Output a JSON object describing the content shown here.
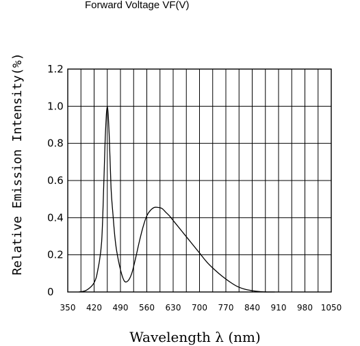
{
  "chart_data": {
    "type": "line",
    "top_text": "Forward Voltage VF(V)",
    "xlabel": "Wavelength λ (nm)",
    "ylabel": "Relative Emission Intensity(%)",
    "x_ticks": [
      "350",
      "420",
      "490",
      "560",
      "630",
      "700",
      "770",
      "840",
      "910",
      "980",
      "1050"
    ],
    "y_ticks": [
      "0",
      "0.2",
      "0.4",
      "0.6",
      "0.8",
      "1.0",
      "1.2"
    ],
    "xlim": [
      350,
      1050
    ],
    "ylim": [
      0,
      1.2
    ],
    "grid": true,
    "series": [
      {
        "color": "#000000",
        "x": [
          380,
          400,
          420,
          430,
          440,
          446,
          450,
          455,
          460,
          465,
          470,
          475,
          480,
          490,
          500,
          510,
          520,
          530,
          540,
          550,
          560,
          570,
          580,
          590,
          600,
          610,
          620,
          630,
          640,
          660,
          680,
          700,
          720,
          740,
          760,
          780,
          800,
          820,
          840,
          860,
          880,
          890,
          900
        ],
        "y": [
          0.0,
          0.01,
          0.05,
          0.12,
          0.27,
          0.6,
          0.85,
          1.0,
          0.85,
          0.56,
          0.42,
          0.3,
          0.22,
          0.12,
          0.06,
          0.06,
          0.1,
          0.18,
          0.27,
          0.35,
          0.41,
          0.44,
          0.455,
          0.455,
          0.45,
          0.43,
          0.41,
          0.385,
          0.36,
          0.31,
          0.26,
          0.21,
          0.16,
          0.12,
          0.085,
          0.055,
          0.03,
          0.015,
          0.007,
          0.002,
          0.0,
          0.0,
          0.0
        ]
      }
    ]
  }
}
